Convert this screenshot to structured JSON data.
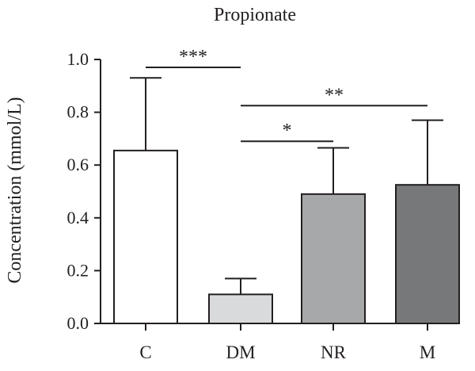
{
  "chart_data": {
    "type": "bar",
    "title": "Propionate",
    "xlabel": "",
    "ylabel": "Concentration (mmol/L)",
    "ylim": [
      0,
      1.0
    ],
    "yticks": [
      "0.0",
      "0.2",
      "0.4",
      "0.6",
      "0.8",
      "1.0"
    ],
    "categories": [
      "C",
      "DM",
      "NR",
      "M"
    ],
    "values": [
      0.655,
      0.11,
      0.49,
      0.525
    ],
    "error_upper": [
      0.93,
      0.17,
      0.665,
      0.77
    ],
    "colors": [
      "#ffffff",
      "#d9dadb",
      "#a7a8aa",
      "#76787a"
    ],
    "grid": false,
    "significance": [
      {
        "from": "C",
        "to": "DM",
        "label": "***",
        "y": 0.97
      },
      {
        "from": "DM",
        "to": "M",
        "label": "**",
        "y": 0.825
      },
      {
        "from": "DM",
        "to": "NR",
        "label": "*",
        "y": 0.69
      }
    ]
  }
}
